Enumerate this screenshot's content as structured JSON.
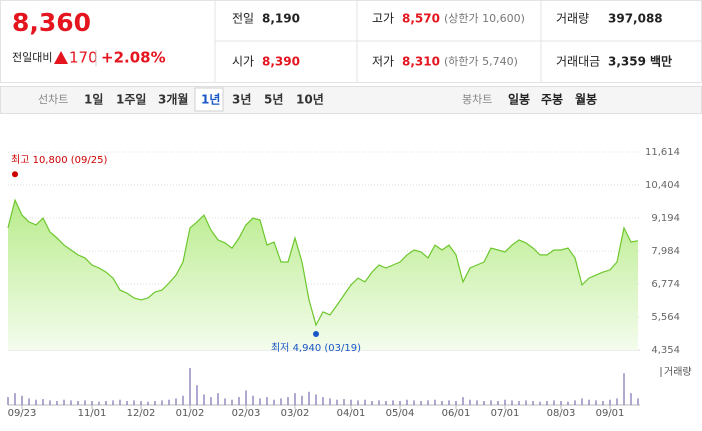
{
  "quote": {
    "price": "8,360",
    "change_label": "전일대비",
    "change": "170",
    "change_rate": "+2.08%",
    "color": "#e4151f"
  },
  "summary": [
    [
      {
        "label": "전일",
        "value": "8,190",
        "color": "#222222"
      },
      {
        "label": "고가",
        "value": "8,570",
        "note": "(상한가 10,600)",
        "color": "#e4151f"
      },
      {
        "label": "거래량",
        "value": "397,088",
        "color": "#222222"
      }
    ],
    [
      {
        "label": "시가",
        "value": "8,390",
        "color": "#e4151f"
      },
      {
        "label": "저가",
        "value": "8,310",
        "note": "(하한가 5,740)",
        "color": "#e4151f"
      },
      {
        "label": "거래대금",
        "value": "3,359",
        "unit": "백만",
        "color": "#222222"
      }
    ]
  ],
  "tabs": {
    "line_label": "선차트",
    "line": [
      "1일",
      "1주일",
      "3개월",
      "1년",
      "3년",
      "5년",
      "10년"
    ],
    "selected": 3,
    "candle_label": "봉차트",
    "candle": [
      "일봉",
      "주봉",
      "월봉"
    ]
  },
  "chart_data": {
    "type": "area",
    "color": "#6cc72c",
    "grid": true,
    "categories": [
      null,
      null,
      "09/23",
      null,
      null,
      null,
      null,
      null,
      null,
      null,
      null,
      null,
      "11/01",
      null,
      null,
      null,
      null,
      null,
      null,
      "12/02",
      null,
      null,
      null,
      null,
      null,
      null,
      "01/02",
      null,
      null,
      null,
      null,
      null,
      null,
      null,
      "02/03",
      null,
      null,
      null,
      null,
      null,
      null,
      "03/02",
      null,
      null,
      null,
      null,
      null,
      null,
      null,
      "04/01",
      null,
      null,
      null,
      null,
      null,
      null,
      "05/04",
      null,
      null,
      null,
      null,
      null,
      null,
      null,
      "06/01",
      null,
      null,
      null,
      null,
      null,
      null,
      "07/01",
      null,
      null,
      null,
      null,
      null,
      null,
      null,
      "08/03",
      null,
      null,
      null,
      null,
      null,
      null,
      "09/01",
      null,
      null,
      null,
      null
    ],
    "values": [
      8830,
      9850,
      9300,
      9050,
      8940,
      9190,
      8680,
      8460,
      8200,
      8020,
      7840,
      7730,
      7470,
      7360,
      7210,
      6990,
      6550,
      6440,
      6260,
      6190,
      6260,
      6480,
      6550,
      6810,
      7100,
      7580,
      8830,
      9050,
      9300,
      8750,
      8390,
      8280,
      8090,
      8460,
      8940,
      9190,
      9120,
      8200,
      8310,
      7580,
      7580,
      8460,
      7580,
      6190,
      5270,
      5750,
      5640,
      6000,
      6370,
      6740,
      6990,
      6850,
      7210,
      7470,
      7360,
      7470,
      7580,
      7840,
      8020,
      7950,
      7730,
      8200,
      8020,
      8200,
      7840,
      6850,
      7360,
      7470,
      7580,
      8090,
      8020,
      7950,
      8200,
      8390,
      8280,
      8090,
      7840,
      7840,
      8020,
      8020,
      8090,
      7730,
      6740,
      6990,
      7100,
      7210,
      7290,
      7580,
      8830,
      8310,
      8360
    ],
    "ylim": [
      4354,
      11614
    ],
    "yticks": [
      {
        "value": 4354,
        "label": "4,354"
      },
      {
        "value": 5564,
        "label": "5,564"
      },
      {
        "value": 6774,
        "label": "6,774"
      },
      {
        "value": 7984,
        "label": "7,984"
      },
      {
        "value": 9194,
        "label": "9,194"
      },
      {
        "value": 10404,
        "label": "10,404"
      },
      {
        "value": 11614,
        "label": "11,614"
      }
    ],
    "high": {
      "label": "최고 10,800 (09/25)",
      "value": 10800,
      "color": "#cc0000"
    },
    "low": {
      "label": "최저 4,940 (03/19)",
      "value": 4940,
      "color": "#1a56c8"
    },
    "volume": {
      "name": "거래량",
      "color": "#7a6fb0",
      "values": [
        600000,
        900000,
        700000,
        500000,
        400000,
        450000,
        350000,
        300000,
        400000,
        350000,
        300000,
        350000,
        300000,
        250000,
        300000,
        350000,
        400000,
        300000,
        350000,
        300000,
        250000,
        300000,
        350000,
        400000,
        500000,
        700000,
        2800000,
        1500000,
        800000,
        600000,
        900000,
        500000,
        400000,
        600000,
        1100000,
        700000,
        500000,
        600000,
        400000,
        500000,
        600000,
        900000,
        700000,
        1000000,
        800000,
        600000,
        500000,
        400000,
        450000,
        400000,
        350000,
        400000,
        300000,
        350000,
        300000,
        350000,
        300000,
        400000,
        350000,
        300000,
        350000,
        400000,
        300000,
        350000,
        300000,
        600000,
        400000,
        350000,
        300000,
        350000,
        300000,
        400000,
        350000,
        300000,
        350000,
        300000,
        250000,
        300000,
        350000,
        300000,
        250000,
        350000,
        500000,
        400000,
        350000,
        300000,
        400000,
        500000,
        2400000,
        900000,
        500000
      ]
    }
  }
}
